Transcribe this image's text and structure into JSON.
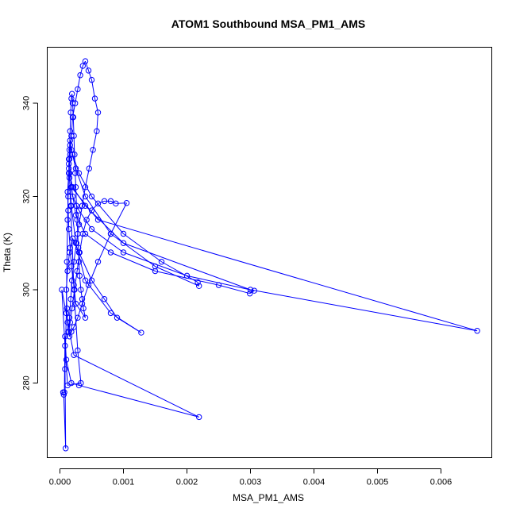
{
  "chart_data": {
    "type": "line",
    "title": "ATOM1 Southbound MSA_PM1_AMS",
    "xlabel": "MSA_PM1_AMS",
    "ylabel": "Theta (K)",
    "xlim": [
      -0.0002,
      0.0068
    ],
    "ylim": [
      264,
      352
    ],
    "xticks": [
      0.0,
      0.001,
      0.002,
      0.003,
      0.004,
      0.005,
      0.006
    ],
    "xtick_labels": [
      "0.000",
      "0.001",
      "0.002",
      "0.003",
      "0.004",
      "0.005",
      "0.006"
    ],
    "yticks": [
      280,
      300,
      320,
      340
    ],
    "ytick_labels": [
      "280",
      "300",
      "320",
      "340"
    ],
    "grid": false,
    "marker": "open-circle",
    "color": "#0000ff",
    "series": [
      {
        "x": [
          5e-05,
          6e-05,
          9e-05,
          8e-05,
          0.0001,
          0.00011,
          0.00012,
          0.00013,
          0.00014,
          0.00015,
          0.00016,
          0.00017,
          0.00018,
          0.00019,
          0.0002,
          0.00021,
          0.00022,
          0.00023,
          0.00024,
          0.00025,
          0.00026,
          0.00027,
          0.00028,
          0.00029,
          0.0003,
          0.00031,
          0.00033,
          0.00035,
          0.00037,
          0.0004,
          0.00025,
          0.00022,
          0.00018,
          0.00016,
          0.00014,
          0.00013,
          0.00012,
          0.00014,
          0.00016,
          0.00018,
          0.0002,
          0.00024,
          0.00028,
          0.00032,
          0.00036,
          0.0004,
          0.00045,
          0.0005,
          0.00055,
          0.0006,
          0.00058,
          0.00052,
          0.00046,
          0.0004,
          0.00035,
          0.0003,
          0.00026,
          0.00022,
          0.00019,
          0.00017,
          0.00015,
          0.00014,
          0.00016,
          0.00019,
          0.00023,
          0.00027,
          0.00031,
          0.00036,
          0.00042,
          0.0005,
          0.0006,
          0.0007,
          0.0008,
          0.00088,
          0.00105,
          0.0008,
          0.0006,
          0.00045,
          0.00035,
          0.00028,
          0.00022,
          0.00018,
          0.00015,
          0.00013,
          0.00012,
          0.00011,
          0.0001,
          0.00012,
          0.00015,
          0.0002,
          0.0003,
          0.0005,
          0.0007,
          0.0009,
          0.00128,
          0.0008,
          0.0004,
          0.00025,
          0.00018,
          0.00015,
          0.00014,
          0.00016,
          0.0002,
          0.0003,
          0.0005,
          0.001,
          0.0016,
          0.00217,
          0.00219,
          0.0015,
          0.0008,
          0.0004,
          0.00025,
          0.00018,
          0.00016,
          0.00015,
          0.00018,
          0.00025,
          0.0004,
          0.0008,
          0.0015,
          0.0025,
          0.00299,
          0.00306,
          0.002,
          0.001,
          0.0005,
          0.0003,
          0.0002,
          0.00018,
          0.0006,
          0.00657,
          0.003,
          0.001,
          0.0004,
          0.0002,
          0.00015,
          0.00014,
          0.00017,
          0.00022,
          0.00028,
          0.00033,
          0.00012,
          8e-05,
          3e-05,
          0.00022,
          0.00219,
          0.0003,
          0.00018,
          0.0001,
          8e-05,
          7e-05
        ],
        "y": [
          278.0,
          277.5,
          266.0,
          283.0,
          295.0,
          306.0,
          315.0,
          320.0,
          326.0,
          330.0,
          334.0,
          338.0,
          341.0,
          342.0,
          340.0,
          337.0,
          333.0,
          329.0,
          325.0,
          322.0,
          318.0,
          315.0,
          312.0,
          309.0,
          306.0,
          303.0,
          300.0,
          298.0,
          296.0,
          294.0,
          297.0,
          301.0,
          305.0,
          309.0,
          313.0,
          317.0,
          321.0,
          325.0,
          329.0,
          333.0,
          337.0,
          340.0,
          343.0,
          346.0,
          348.0,
          349.0,
          347.0,
          345.0,
          341.0,
          338.0,
          334.0,
          330.0,
          326.0,
          322.0,
          318.0,
          314.0,
          310.0,
          306.0,
          302.0,
          298.0,
          294.0,
          291.0,
          293.0,
          296.0,
          300.0,
          304.0,
          308.0,
          312.0,
          315.0,
          317.0,
          318.5,
          319.0,
          319.0,
          318.5,
          318.6,
          312.0,
          306.0,
          301.0,
          297.0,
          294.0,
          292.0,
          291.0,
          290.0,
          291.0,
          293.0,
          296.0,
          300.0,
          304.0,
          308.0,
          311.0,
          308.0,
          302.0,
          298.0,
          294.0,
          290.8,
          295.0,
          302.0,
          310.0,
          318.0,
          324.0,
          328.0,
          331.0,
          329.0,
          325.0,
          320.0,
          312.0,
          306.0,
          301.6,
          300.8,
          305.0,
          312.0,
          320.0,
          326.0,
          330.0,
          332.0,
          328.0,
          322.0,
          316.0,
          312.0,
          308.0,
          304.0,
          301.0,
          299.2,
          299.8,
          303.0,
          308.0,
          313.0,
          317.0,
          320.0,
          322.0,
          315.0,
          291.2,
          300.0,
          310.0,
          318.0,
          322.0,
          325.0,
          327.0,
          318.0,
          300.0,
          287.0,
          280.0,
          279.5,
          288.0,
          300.0,
          286.0,
          272.7,
          279.5,
          280.0,
          285.0,
          290.0,
          278.0
        ]
      }
    ]
  }
}
